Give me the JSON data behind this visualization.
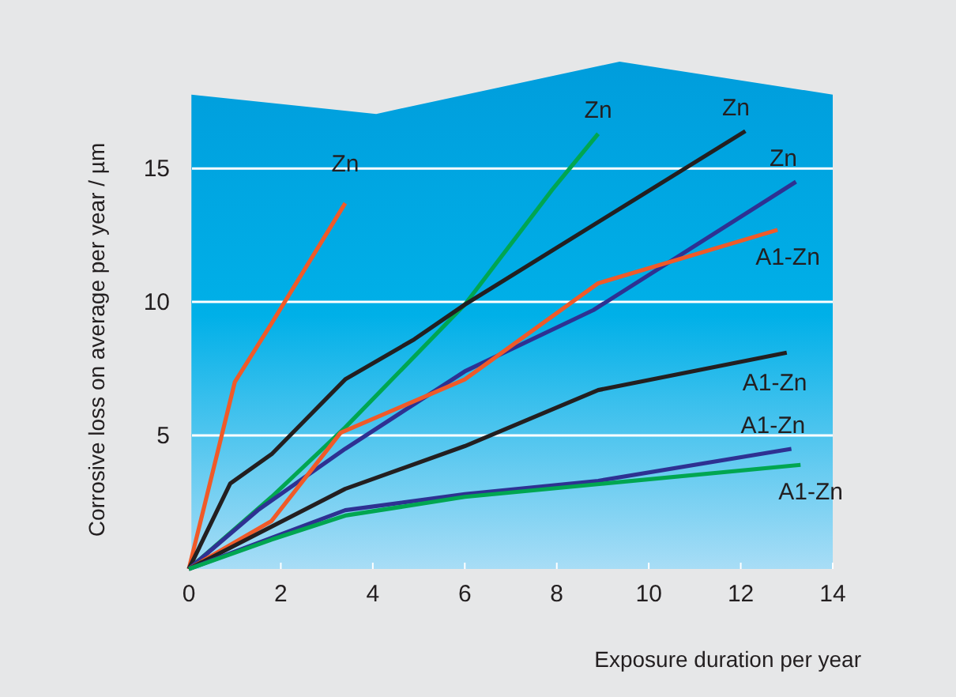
{
  "chart_data": {
    "type": "line",
    "xlabel": "Exposure duration per year",
    "ylabel": "Corrosive loss on average per year / µm",
    "xlim": [
      0,
      14
    ],
    "xticks": [
      0,
      2,
      4,
      6,
      8,
      10,
      12,
      14
    ],
    "ylim": [
      0,
      19
    ],
    "yticks": [
      {
        "value": 0,
        "label": null
      },
      5,
      10,
      15
    ],
    "grid": "y",
    "marker": "none",
    "line_style": "solid",
    "series": [
      {
        "name": "Zn",
        "color": "#f05a28",
        "x": [
          0,
          1,
          1.8,
          3.4
        ],
        "values": [
          0,
          7,
          9.2,
          13.7
        ]
      },
      {
        "name": "Zn",
        "color": "#00a651",
        "x": [
          0,
          1.8,
          3.4,
          6,
          7.9,
          8.9
        ],
        "values": [
          0,
          2.7,
          5.3,
          9.9,
          14.2,
          16.3
        ]
      },
      {
        "name": "Zn",
        "color": "#231f20",
        "x": [
          0,
          0.9,
          1.8,
          3.4,
          4.9,
          6,
          12.1
        ],
        "values": [
          0,
          3.2,
          4.3,
          7.1,
          8.6,
          9.9,
          16.4
        ]
      },
      {
        "name": "Zn",
        "color": "#2e3192",
        "x": [
          0,
          1.5,
          3.4,
          6,
          8.8,
          13.2
        ],
        "values": [
          0,
          2.2,
          4.5,
          7.4,
          9.7,
          14.5
        ]
      },
      {
        "name": "A1-Zn",
        "color": "#f05a28",
        "x": [
          0,
          1.8,
          3.3,
          6,
          8.9,
          12.8
        ],
        "values": [
          0,
          1.8,
          5.1,
          7.1,
          10.7,
          12.7
        ]
      },
      {
        "name": "A1-Zn",
        "color": "#231f20",
        "x": [
          0,
          3.4,
          6,
          8.9,
          13
        ],
        "values": [
          0,
          3.0,
          4.6,
          6.7,
          8.1
        ]
      },
      {
        "name": "A1-Zn",
        "color": "#2e3192",
        "x": [
          0,
          3.4,
          6,
          8.9,
          13.1
        ],
        "values": [
          0,
          2.2,
          2.8,
          3.3,
          4.5
        ]
      },
      {
        "name": "A1-Zn",
        "color": "#00a651",
        "x": [
          0,
          1.8,
          3.4,
          6,
          13.3
        ],
        "values": [
          0,
          1.1,
          2.0,
          2.7,
          3.9
        ]
      }
    ]
  }
}
